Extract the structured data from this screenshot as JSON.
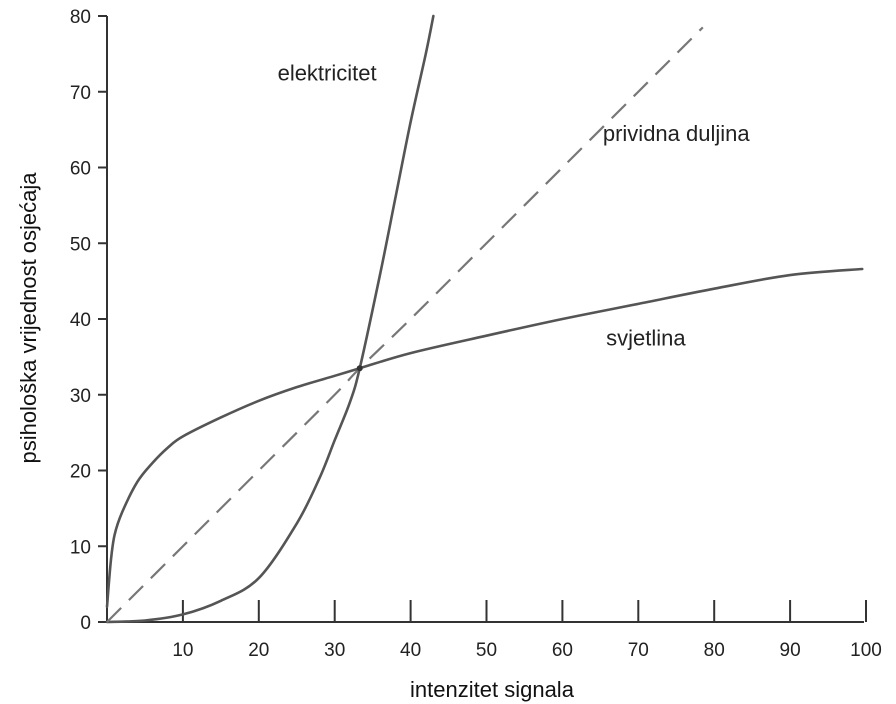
{
  "chart_data": {
    "type": "line",
    "xlabel": "intenzitet signala",
    "ylabel": "psihološka vrijednost osjećaja",
    "xlim": [
      0,
      100
    ],
    "ylim": [
      0,
      80
    ],
    "x_ticks": [
      "10",
      "20",
      "30",
      "40",
      "50",
      "60",
      "70",
      "80",
      "90",
      "100"
    ],
    "y_ticks": [
      "0",
      "10",
      "20",
      "30",
      "40",
      "50",
      "60",
      "70",
      "80"
    ],
    "grid": false,
    "legend": "none",
    "series": [
      {
        "name": "elektricitet",
        "style": "solid",
        "color": "#555555",
        "points": [
          [
            0,
            0
          ],
          [
            5,
            0.2
          ],
          [
            10,
            1
          ],
          [
            15,
            2.8
          ],
          [
            20,
            5.8
          ],
          [
            25,
            13
          ],
          [
            28,
            19
          ],
          [
            30,
            24
          ],
          [
            32,
            29
          ],
          [
            33.3,
            33.5
          ],
          [
            36,
            46
          ],
          [
            38,
            56
          ],
          [
            40,
            66
          ],
          [
            42,
            75
          ],
          [
            43,
            80
          ]
        ]
      },
      {
        "name": "prividna duljina",
        "style": "dashed",
        "color": "#777777",
        "points": [
          [
            0,
            0
          ],
          [
            10,
            10
          ],
          [
            20,
            20
          ],
          [
            30,
            30
          ],
          [
            33.3,
            33.5
          ],
          [
            40,
            40
          ],
          [
            50,
            50
          ],
          [
            60,
            60
          ],
          [
            70,
            70
          ],
          [
            78.5,
            78.5
          ]
        ]
      },
      {
        "name": "svjetlina",
        "style": "solid",
        "color": "#555555",
        "points": [
          [
            0,
            2
          ],
          [
            0.5,
            8
          ],
          [
            1,
            11.5
          ],
          [
            2,
            14.5
          ],
          [
            4,
            18.5
          ],
          [
            6,
            21
          ],
          [
            8,
            23
          ],
          [
            10,
            24.5
          ],
          [
            15,
            27
          ],
          [
            20,
            29.2
          ],
          [
            25,
            31
          ],
          [
            30,
            32.5
          ],
          [
            33.3,
            33.5
          ],
          [
            40,
            35.5
          ],
          [
            50,
            37.8
          ],
          [
            60,
            40
          ],
          [
            70,
            42
          ],
          [
            80,
            44
          ],
          [
            90,
            45.8
          ],
          [
            99.5,
            46.6
          ]
        ]
      }
    ],
    "annotations": [
      {
        "text": "elektricitet",
        "x": 29,
        "y": 71.5
      },
      {
        "text": "prividna duljina",
        "x": 75,
        "y": 63.5
      },
      {
        "text": "svjetlina",
        "x": 71,
        "y": 36.5
      }
    ]
  }
}
